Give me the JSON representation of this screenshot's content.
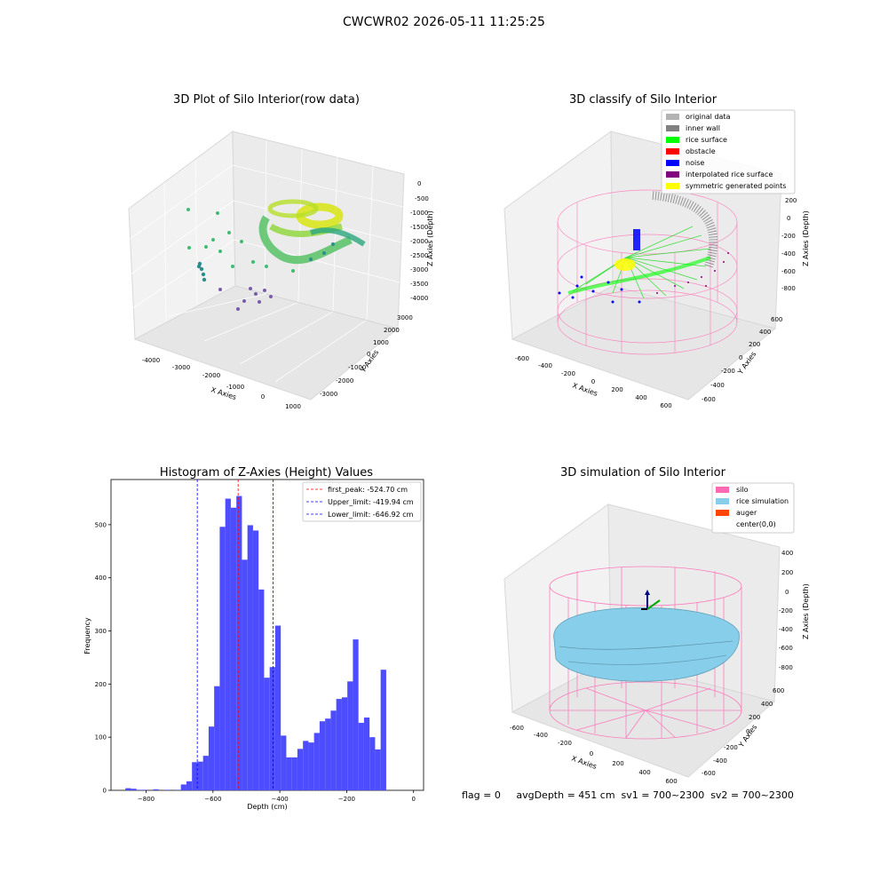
{
  "figure": {
    "suptitle": "CWCWR02 2026-05-11 11:25:25",
    "status_line": "flag = 0     avgDepth = 451 cm  sv1 = 700~2300  sv2 = 700~2300"
  },
  "chart_data": [
    {
      "type": "scatter3d",
      "title": "3D Plot of Silo Interior(row data)",
      "xlabel": "X Axies",
      "ylabel": "Y Axies",
      "zlabel": "Z Axies (Depth)",
      "xticks": [
        -4000,
        -3000,
        -2000,
        -1000,
        0,
        1000
      ],
      "yticks": [
        -3000,
        -2000,
        -1000,
        0,
        1000,
        2000,
        3000
      ],
      "zticks": [
        0,
        -500,
        -1000,
        -1500,
        -2000,
        -2500,
        -3000,
        -3500,
        -4000
      ],
      "colormap": "viridis",
      "grid": true
    },
    {
      "type": "scatter3d",
      "title": "3D classify of Silo Interior",
      "xlabel": "X Axies",
      "ylabel": "Y Axies",
      "zlabel": "Z Axies (Depth)",
      "xticks": [
        -600,
        -400,
        -200,
        0,
        200,
        400,
        600
      ],
      "yticks": [
        -600,
        -400,
        -200,
        0,
        200,
        400,
        600
      ],
      "zticks": [
        200,
        0,
        -200,
        -400,
        -600,
        -800
      ],
      "legend_position": "top-right",
      "legend": [
        {
          "label": "original data",
          "color": "#b3b3b3"
        },
        {
          "label": "inner wall",
          "color": "#808080"
        },
        {
          "label": "rice surface",
          "color": "#00ff00"
        },
        {
          "label": "obstacle",
          "color": "#ff0000"
        },
        {
          "label": "noise",
          "color": "#0000ff"
        },
        {
          "label": "interpolated rice surface",
          "color": "#800080"
        },
        {
          "label": "symmetric generated points",
          "color": "#ffff00"
        }
      ],
      "grid": true
    },
    {
      "type": "bar",
      "subtype": "histogram",
      "title": "Histogram of Z-Axies (Height) Values",
      "xlabel": "Depth (cm)",
      "ylabel": "Frequency",
      "xlim": [
        -905,
        30
      ],
      "ylim": [
        0,
        585
      ],
      "xticks": [
        -800,
        -600,
        -400,
        -200,
        0
      ],
      "yticks": [
        0,
        100,
        200,
        300,
        400,
        500
      ],
      "bar_color": "#4d4dff",
      "bin_width": 16.6,
      "bins_start": -862,
      "values": [
        4,
        3,
        1,
        1,
        0,
        2,
        0,
        1,
        0,
        1,
        11,
        17,
        53,
        54,
        65,
        120,
        196,
        496,
        549,
        532,
        554,
        434,
        499,
        489,
        378,
        212,
        232,
        310,
        103,
        62,
        62,
        78,
        93,
        90,
        108,
        130,
        135,
        150,
        172,
        175,
        205,
        284,
        127,
        137,
        100,
        77,
        227
      ],
      "reference_lines": [
        {
          "label": "first_peak: -524.70 cm",
          "x": -524.7,
          "color": "#ff0000"
        },
        {
          "label": "Upper_limit: -419.94 cm",
          "x": -419.94,
          "color": "#0000ff"
        },
        {
          "label": "Lower_limit: -646.92 cm",
          "x": -646.92,
          "color": "#0000ff"
        }
      ],
      "legend_position": "top-right",
      "grid": false
    },
    {
      "type": "surface3d",
      "title": "3D simulation of Silo Interior",
      "xlabel": "X Axies",
      "ylabel": "Y Axies",
      "zlabel": "Z Axies (Depth)",
      "xticks": [
        -600,
        -400,
        -200,
        0,
        200,
        400,
        600
      ],
      "yticks": [
        -600,
        -400,
        -200,
        0,
        200,
        400,
        600
      ],
      "zticks": [
        400,
        200,
        0,
        -200,
        -400,
        -600,
        -800
      ],
      "legend_position": "top-right",
      "legend": [
        {
          "label": "silo",
          "color": "#ff69b4"
        },
        {
          "label": "rice simulation",
          "color": "#87ceeb"
        },
        {
          "label": "auger",
          "color": "#ff4500"
        },
        {
          "label": "center(0,0)",
          "color": "none"
        }
      ],
      "grid": true
    }
  ]
}
